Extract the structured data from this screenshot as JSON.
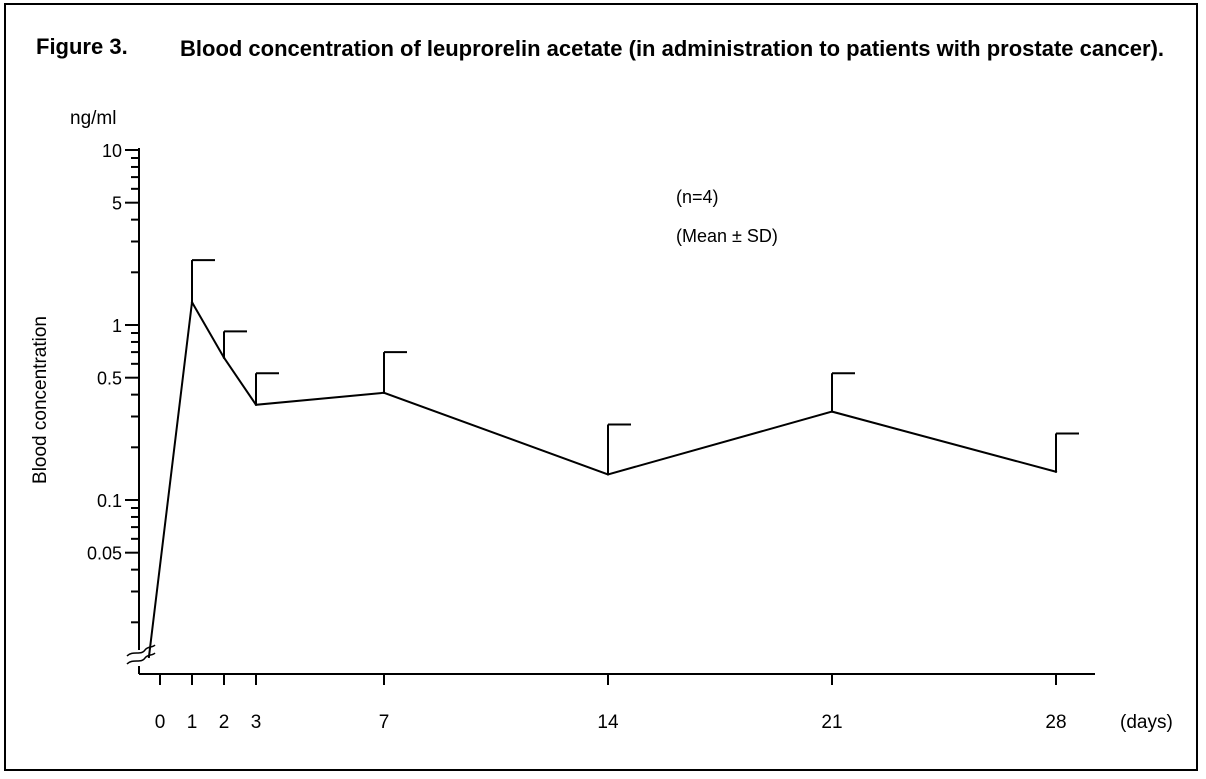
{
  "figure": {
    "label": "Figure 3.",
    "title": "Blood concentration of leuprorelin acetate (in administration to patients with prostate cancer)."
  },
  "chart_data": {
    "type": "line",
    "title": "Blood concentration of leuprorelin acetate (in administration to patients with prostate cancer).",
    "ylabel": "Blood concentration",
    "yunit": "ng/ml",
    "xunit": "(days)",
    "yscale": "log",
    "grid": false,
    "legend": "none",
    "x_ticks": [
      0,
      1,
      2,
      3,
      7,
      14,
      21,
      28
    ],
    "y_tick_labels": [
      {
        "value": 10,
        "label": "10"
      },
      {
        "value": 5,
        "label": "5"
      },
      {
        "value": 1,
        "label": "1"
      },
      {
        "value": 0.5,
        "label": "0.5"
      },
      {
        "value": 0.1,
        "label": "0.1"
      },
      {
        "value": 0.05,
        "label": "0.05"
      }
    ],
    "y_minor_ticks": [
      9,
      8,
      7,
      6,
      4,
      3,
      2,
      0.9,
      0.8,
      0.7,
      0.6,
      0.4,
      0.3,
      0.2,
      0.09,
      0.08,
      0.07,
      0.06,
      0.04,
      0.03,
      0.02
    ],
    "annotations": [
      "(n=4)",
      "(Mean ± SD)"
    ],
    "series": [
      {
        "x": [
          1,
          2,
          3,
          7,
          14,
          21,
          28
        ],
        "mean": [
          1.35,
          0.65,
          0.35,
          0.41,
          0.14,
          0.32,
          0.145
        ],
        "upper": [
          2.35,
          0.92,
          0.53,
          0.7,
          0.27,
          0.53,
          0.24
        ]
      }
    ],
    "baseline_start": {
      "x": -0.35,
      "label": "0 at day 0 (axis break)"
    }
  }
}
